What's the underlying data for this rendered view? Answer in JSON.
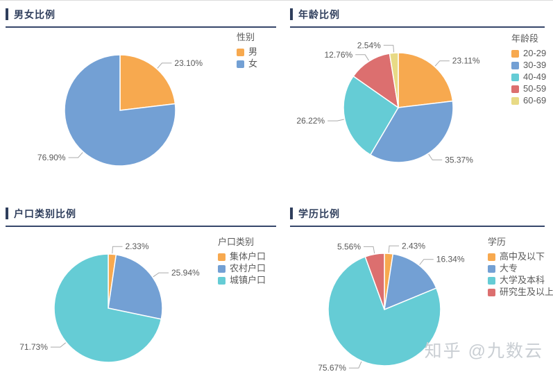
{
  "watermark": "知乎 @九数云",
  "ui_colors": {
    "title_navy": "#2f3e5c",
    "underline_navy": "#36466a",
    "label_gray": "#595959",
    "leader_gray": "#ababab",
    "watermark_gray": "#c9ced3",
    "top_border_gray": "#dcdcdc"
  },
  "chart_data": [
    {
      "type": "pie",
      "title": "男女比例",
      "legend_title": "性别",
      "legend_position": "right",
      "categories": [
        "男",
        "女"
      ],
      "values": [
        23.1,
        76.9
      ],
      "labels": [
        "23.10%",
        "76.90%"
      ],
      "colors": [
        "#f7a94f",
        "#73a0d4"
      ]
    },
    {
      "type": "pie",
      "title": "年龄比例",
      "legend_title": "年龄段",
      "legend_position": "right",
      "categories": [
        "20-29",
        "30-39",
        "40-49",
        "50-59",
        "60-69"
      ],
      "values": [
        23.11,
        35.37,
        26.22,
        12.76,
        2.54
      ],
      "labels": [
        "23.11%",
        "35.37%",
        "26.22%",
        "12.76%",
        "2.54%"
      ],
      "colors": [
        "#f7a94f",
        "#73a0d4",
        "#65ccd5",
        "#dc6f6f",
        "#e8da85"
      ]
    },
    {
      "type": "pie",
      "title": "户口类别比例",
      "legend_title": "户口类别",
      "legend_position": "right",
      "categories": [
        "集体户口",
        "农村户口",
        "城镇户口"
      ],
      "values": [
        2.33,
        25.94,
        71.73
      ],
      "labels": [
        "2.33%",
        "25.94%",
        "71.73%"
      ],
      "colors": [
        "#f7a94f",
        "#73a0d4",
        "#65ccd5"
      ]
    },
    {
      "type": "pie",
      "title": "学历比例",
      "legend_title": "学历",
      "legend_position": "right",
      "categories": [
        "高中及以下",
        "大专",
        "大学及本科",
        "研究生及以上"
      ],
      "values": [
        2.43,
        16.34,
        75.67,
        5.56
      ],
      "labels": [
        "2.43%",
        "16.34%",
        "75.67%",
        "5.56%"
      ],
      "colors": [
        "#f7a94f",
        "#73a0d4",
        "#65ccd5",
        "#dc6f6f"
      ]
    }
  ]
}
